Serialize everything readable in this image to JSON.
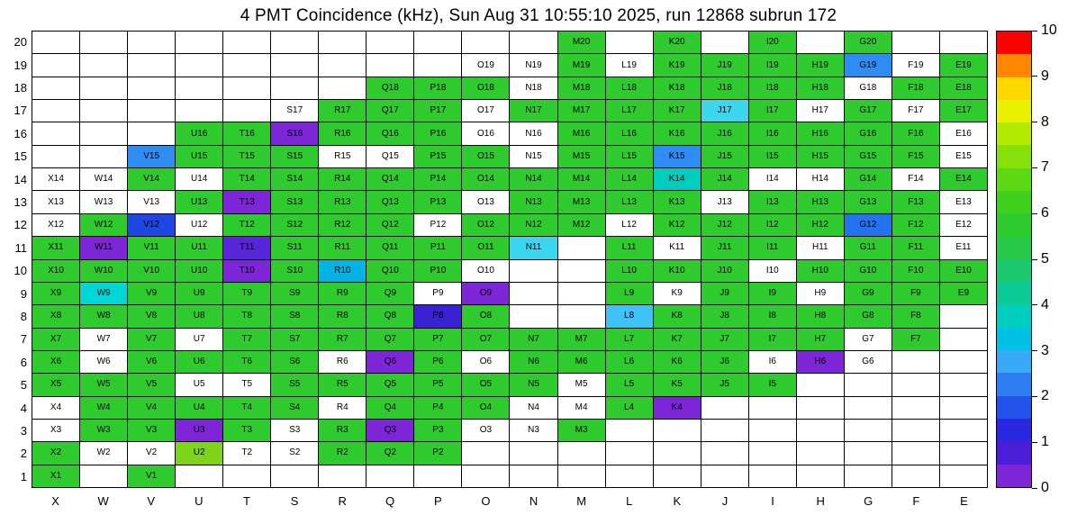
{
  "chart_data": {
    "type": "heatmap",
    "title": "4 PMT Coincidence (kHz), Sun Aug 31 10:55:10 2025, run 12868 subrun 172",
    "timestamp": "Sun Aug 31 10:55:10 2025",
    "run": "12868",
    "subrun": "172",
    "xlabel": "",
    "ylabel": "",
    "columns": [
      "X",
      "W",
      "V",
      "U",
      "T",
      "S",
      "R",
      "Q",
      "P",
      "O",
      "N",
      "M",
      "L",
      "K",
      "J",
      "I",
      "H",
      "G",
      "F",
      "E"
    ],
    "rows": [
      20,
      19,
      18,
      17,
      16,
      15,
      14,
      13,
      12,
      11,
      10,
      9,
      8,
      7,
      6,
      5,
      4,
      3,
      2,
      1
    ],
    "palette": {
      "g": {
        "color": "#2eca2e",
        "approx_value_khz": 5
      },
      "yg": {
        "color": "#7fd41a",
        "approx_value_khz": 6.8
      },
      "cy": {
        "color": "#00d6d6",
        "approx_value_khz": 3.5
      },
      "tc": {
        "color": "#00cdbe",
        "approx_value_khz": 3.7
      },
      "lc": {
        "color": "#3cd6ee",
        "approx_value_khz": 3.3
      },
      "cb": {
        "color": "#00b4e6",
        "approx_value_khz": 3.0
      },
      "lb": {
        "color": "#3ec2fa",
        "approx_value_khz": 2.7
      },
      "b": {
        "color": "#2e8cf2",
        "approx_value_khz": 2.3
      },
      "mb": {
        "color": "#2472ee",
        "approx_value_khz": 2.1
      },
      "db": {
        "color": "#1e46e0",
        "approx_value_khz": 1.6
      },
      "bp": {
        "color": "#3a22d4",
        "approx_value_khz": 1.1
      },
      "vp": {
        "color": "#5626d8",
        "approx_value_khz": 0.8
      },
      "p": {
        "color": "#7c26d8",
        "approx_value_khz": 0.5
      },
      "w": {
        "color": "#ffffff",
        "approx_value_khz": null
      }
    },
    "cells": {
      "20": [
        "",
        "",
        "",
        "",
        "",
        "",
        "",
        "",
        "",
        "",
        "",
        "M20:g",
        "",
        "K20:g",
        "",
        "I20:g",
        "",
        "G20:g",
        "",
        ""
      ],
      "19": [
        "",
        "",
        "",
        "",
        "",
        "",
        "",
        "",
        "",
        "O19:w",
        "N19:w",
        "M19:g",
        "L19:w",
        "K19:g",
        "J19:g",
        "I19:g",
        "H19:g",
        "G19:b",
        "F19:w",
        "E19:g"
      ],
      "18": [
        "",
        "",
        "",
        "",
        "",
        "",
        "",
        "Q18:g",
        "P18:g",
        "O18:g",
        "N18:w",
        "M18:g",
        "L18:g",
        "K18:g",
        "J18:g",
        "I18:g",
        "H18:g",
        "G18:w",
        "F18:g",
        "E18:g"
      ],
      "17": [
        "",
        "",
        "",
        "",
        "",
        "S17:w",
        "R17:g",
        "Q17:g",
        "P17:g",
        "O17:w",
        "N17:g",
        "M17:g",
        "L17:g",
        "K17:g",
        "J17:lc",
        "I17:g",
        "H17:w",
        "G17:g",
        "F17:w",
        "E17:g"
      ],
      "16": [
        "",
        "",
        "",
        "U16:g",
        "T16:g",
        "S16:p",
        "R16:g",
        "Q16:g",
        "P16:g",
        "O16:w",
        "N16:w",
        "M16:g",
        "L16:g",
        "K16:g",
        "J16:g",
        "I16:g",
        "H16:g",
        "G16:g",
        "F16:g",
        "E16:w"
      ],
      "15": [
        "",
        "",
        "V15:b",
        "U15:g",
        "T15:g",
        "S15:g",
        "R15:w",
        "Q15:w",
        "P15:g",
        "O15:g",
        "N15:w",
        "M15:g",
        "L15:g",
        "K15:b",
        "J15:g",
        "I15:g",
        "H15:g",
        "G15:g",
        "F15:g",
        "E15:w"
      ],
      "14": [
        "X14:w",
        "W14:w",
        "V14:g",
        "U14:w",
        "T14:g",
        "S14:g",
        "R14:g",
        "Q14:g",
        "P14:g",
        "O14:g",
        "N14:g",
        "M14:g",
        "L14:g",
        "K14:tc",
        "J14:g",
        "I14:w",
        "H14:w",
        "G14:g",
        "F14:w",
        "E14:g"
      ],
      "13": [
        "X13:w",
        "W13:w",
        "V13:w",
        "U13:g",
        "T13:p",
        "S13:g",
        "R13:g",
        "Q13:g",
        "P13:g",
        "O13:w",
        "N13:g",
        "M13:g",
        "L13:g",
        "K13:g",
        "J13:w",
        "I13:g",
        "H13:g",
        "G13:g",
        "F13:g",
        "E13:w"
      ],
      "12": [
        "X12:w",
        "W12:g",
        "V12:db",
        "U12:w",
        "T12:g",
        "S12:g",
        "R12:g",
        "Q12:g",
        "P12:w",
        "O12:g",
        "N12:g",
        "M12:g",
        "L12:w",
        "K12:g",
        "J12:g",
        "I12:g",
        "H12:g",
        "G12:mb",
        "F12:g",
        "E12:w"
      ],
      "11": [
        "X11:g",
        "W11:p",
        "V11:g",
        "U11:g",
        "T11:vp",
        "S11:g",
        "R11:g",
        "Q11:g",
        "P11:g",
        "O11:g",
        "N11:lc",
        "",
        "L11:g",
        "K11:w",
        "J11:g",
        "I11:g",
        "H11:w",
        "G11:g",
        "F11:g",
        "E11:w"
      ],
      "10": [
        "X10:g",
        "W10:g",
        "V10:g",
        "U10:g",
        "T10:p",
        "S10:g",
        "R10:cb",
        "Q10:g",
        "P10:g",
        "O10:w",
        "",
        "",
        "L10:g",
        "K10:g",
        "J10:g",
        "I10:w",
        "H10:g",
        "G10:g",
        "F10:g",
        "E10:g"
      ],
      "9": [
        "X9:g",
        "W9:cy",
        "V9:g",
        "U9:g",
        "T9:g",
        "S9:g",
        "R9:g",
        "Q9:g",
        "P9:w",
        "O9:p",
        "",
        "",
        "L9:g",
        "K9:w",
        "J9:g",
        "I9:g",
        "H9:w",
        "G9:g",
        "F9:g",
        "E9:g"
      ],
      "8": [
        "X8:g",
        "W8:g",
        "V8:g",
        "U8:g",
        "T8:g",
        "S8:g",
        "R8:g",
        "Q8:g",
        "P8:bp",
        "O8:g",
        "",
        "",
        "L8:lb",
        "K8:g",
        "J8:g",
        "I8:g",
        "H8:g",
        "G8:g",
        "F8:g",
        ""
      ],
      "7": [
        "X7:g",
        "W7:w",
        "V7:g",
        "U7:w",
        "T7:g",
        "S7:g",
        "R7:g",
        "Q7:g",
        "P7:g",
        "O7:g",
        "N7:g",
        "M7:g",
        "L7:g",
        "K7:g",
        "J7:g",
        "I7:g",
        "H7:g",
        "G7:w",
        "F7:g",
        ""
      ],
      "6": [
        "X6:g",
        "W6:w",
        "V6:g",
        "U6:g",
        "T6:g",
        "S6:g",
        "R6:w",
        "Q6:p",
        "P6:g",
        "O6:w",
        "N6:g",
        "M6:g",
        "L6:g",
        "K6:g",
        "J6:g",
        "I6:w",
        "H6:p",
        "G6:w",
        "",
        ""
      ],
      "5": [
        "X5:g",
        "W5:g",
        "V5:g",
        "U5:w",
        "T5:w",
        "S5:g",
        "R5:g",
        "Q5:g",
        "P5:g",
        "O5:g",
        "N5:g",
        "M5:w",
        "L5:g",
        "K5:g",
        "J5:g",
        "I5:g",
        "",
        "",
        "",
        ""
      ],
      "4": [
        "X4:w",
        "W4:g",
        "V4:g",
        "U4:g",
        "T4:g",
        "S4:g",
        "R4:w",
        "Q4:g",
        "P4:g",
        "O4:g",
        "N4:w",
        "M4:w",
        "L4:g",
        "K4:p",
        "",
        "",
        "",
        "",
        "",
        ""
      ],
      "3": [
        "X3:w",
        "W3:g",
        "V3:g",
        "U3:p",
        "T3:g",
        "S3:w",
        "R3:g",
        "Q3:p",
        "P3:g",
        "O3:w",
        "N3:w",
        "M3:g",
        "",
        "",
        "",
        "",
        "",
        "",
        "",
        ""
      ],
      "2": [
        "X2:g",
        "W2:w",
        "V2:w",
        "U2:yg",
        "T2:w",
        "S2:w",
        "R2:g",
        "Q2:g",
        "P2:g",
        "",
        "",
        "",
        "",
        "",
        "",
        "",
        "",
        "",
        "",
        ""
      ],
      "1": [
        "X1:g",
        "",
        "V1:g",
        "",
        "",
        "",
        "",
        "",
        "",
        "",
        "",
        "",
        "",
        "",
        "",
        "",
        "",
        "",
        "",
        ""
      ]
    },
    "colorbar": {
      "min": 0,
      "max": 10,
      "ticks": [
        0,
        1,
        2,
        3,
        4,
        5,
        6,
        7,
        8,
        9,
        10
      ],
      "segments_top_to_bottom": [
        "#ff0000",
        "#ff8800",
        "#ffd800",
        "#e8f200",
        "#b4ea00",
        "#86e00a",
        "#5cd814",
        "#40d01e",
        "#2eca2e",
        "#28c84a",
        "#1cc86e",
        "#0ccb96",
        "#00cfc0",
        "#00c2e4",
        "#38aaf6",
        "#2e7ef2",
        "#2352ea",
        "#2a28e0",
        "#4a1ed6",
        "#7c26d8"
      ]
    }
  }
}
